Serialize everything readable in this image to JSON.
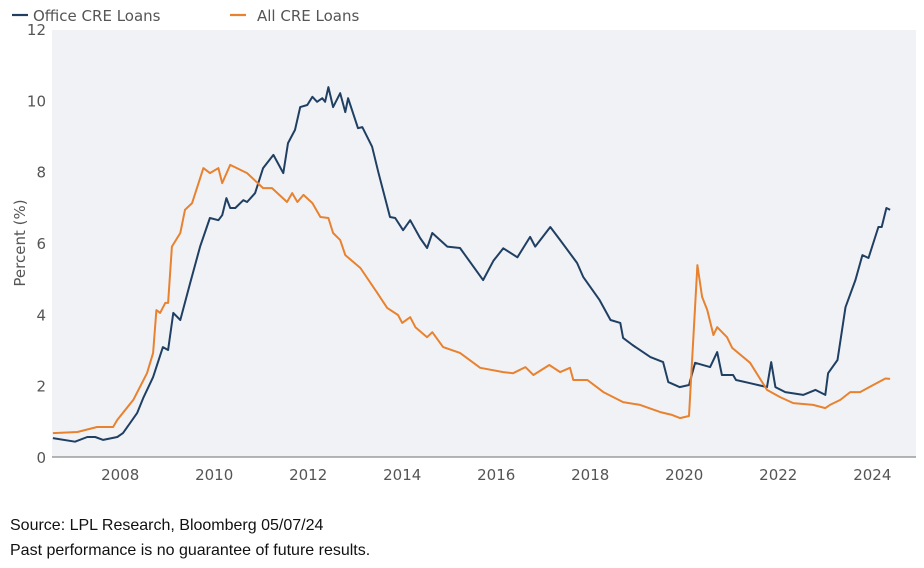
{
  "chart_data": {
    "type": "line",
    "title": "",
    "xlabel": "",
    "ylabel": "Percent (%)",
    "xlim": [
      2006.55,
      2024.93
    ],
    "ylim": [
      0,
      12
    ],
    "yticks": [
      0,
      2,
      4,
      6,
      8,
      10,
      12
    ],
    "xticks": [
      2008,
      2010,
      2012,
      2014,
      2016,
      2018,
      2020,
      2022,
      2024
    ],
    "grid": false,
    "legend": "top-left",
    "series": [
      {
        "name": "Office CRE Loans",
        "color": "#1f3f63",
        "x": [
          2006.57,
          2007.04,
          2007.3,
          2007.47,
          2007.64,
          2007.94,
          2008.06,
          2008.36,
          2008.49,
          2008.7,
          2008.91,
          2009.02,
          2009.13,
          2009.28,
          2009.49,
          2009.7,
          2009.91,
          2010.09,
          2010.17,
          2010.26,
          2010.34,
          2010.45,
          2010.62,
          2010.7,
          2010.87,
          2011.04,
          2011.26,
          2011.47,
          2011.57,
          2011.72,
          2011.83,
          2011.98,
          2012.09,
          2012.19,
          2012.3,
          2012.36,
          2012.43,
          2012.53,
          2012.68,
          2012.79,
          2012.85,
          2013.06,
          2013.15,
          2013.36,
          2013.49,
          2013.74,
          2013.85,
          2014.02,
          2014.17,
          2014.38,
          2014.53,
          2014.64,
          2014.96,
          2015.23,
          2015.72,
          2015.94,
          2016.15,
          2016.45,
          2016.72,
          2016.83,
          2017.15,
          2017.36,
          2017.72,
          2017.85,
          2018.2,
          2018.43,
          2018.64,
          2018.7,
          2018.9,
          2019.28,
          2019.55,
          2019.66,
          2019.9,
          2020.1,
          2020.23,
          2020.55,
          2020.7,
          2020.8,
          2021.04,
          2021.1,
          2021.4,
          2021.76,
          2021.85,
          2021.94,
          2022.15,
          2022.53,
          2022.79,
          2023.0,
          2023.06,
          2023.26,
          2023.43,
          2023.64,
          2023.79,
          2023.92,
          2024.13,
          2024.2,
          2024.3,
          2024.38
        ],
        "y": [
          0.53,
          0.43,
          0.56,
          0.56,
          0.48,
          0.56,
          0.67,
          1.23,
          1.65,
          2.24,
          3.08,
          3.0,
          4.04,
          3.84,
          4.88,
          5.9,
          6.7,
          6.64,
          6.78,
          7.26,
          6.98,
          6.98,
          7.2,
          7.15,
          7.4,
          8.1,
          8.47,
          7.96,
          8.8,
          9.17,
          9.81,
          9.87,
          10.1,
          9.96,
          10.06,
          9.96,
          10.37,
          9.81,
          10.2,
          9.67,
          10.06,
          9.22,
          9.25,
          8.7,
          8.0,
          6.73,
          6.7,
          6.36,
          6.64,
          6.14,
          5.86,
          6.28,
          5.9,
          5.86,
          4.96,
          5.5,
          5.85,
          5.6,
          6.17,
          5.9,
          6.45,
          6.08,
          5.44,
          5.05,
          4.4,
          3.84,
          3.76,
          3.34,
          3.14,
          2.8,
          2.66,
          2.1,
          1.96,
          2.02,
          2.64,
          2.52,
          2.94,
          2.3,
          2.3,
          2.16,
          2.07,
          1.96,
          2.66,
          1.96,
          1.82,
          1.74,
          1.88,
          1.74,
          2.35,
          2.72,
          4.2,
          4.96,
          5.66,
          5.58,
          6.45,
          6.45,
          6.98,
          6.93
        ]
      },
      {
        "name": "All CRE Loans",
        "color": "#e8822f",
        "x": [
          2006.57,
          2007.09,
          2007.51,
          2007.85,
          2007.94,
          2008.28,
          2008.57,
          2008.7,
          2008.77,
          2008.85,
          2008.96,
          2009.02,
          2009.1,
          2009.28,
          2009.38,
          2009.53,
          2009.77,
          2009.91,
          2010.09,
          2010.17,
          2010.34,
          2010.7,
          2011.04,
          2011.23,
          2011.55,
          2011.66,
          2011.77,
          2011.9,
          2012.09,
          2012.26,
          2012.43,
          2012.53,
          2012.68,
          2012.79,
          2013.11,
          2013.47,
          2013.68,
          2013.91,
          2014.0,
          2014.17,
          2014.28,
          2014.53,
          2014.64,
          2014.87,
          2015.23,
          2015.66,
          2016.15,
          2016.36,
          2016.62,
          2016.79,
          2017.13,
          2017.36,
          2017.57,
          2017.64,
          2017.94,
          2018.28,
          2018.7,
          2019.06,
          2019.49,
          2019.74,
          2019.91,
          2020.1,
          2020.28,
          2020.38,
          2020.49,
          2020.62,
          2020.7,
          2020.91,
          2021.02,
          2021.4,
          2021.76,
          2022.04,
          2022.32,
          2022.74,
          2023.0,
          2023.1,
          2023.32,
          2023.53,
          2023.74,
          2024.02,
          2024.28,
          2024.38
        ],
        "y": [
          0.67,
          0.7,
          0.84,
          0.84,
          1.04,
          1.6,
          2.35,
          2.92,
          4.12,
          4.04,
          4.32,
          4.32,
          5.9,
          6.28,
          6.93,
          7.12,
          8.1,
          7.96,
          8.1,
          7.68,
          8.19,
          7.96,
          7.54,
          7.54,
          7.15,
          7.4,
          7.15,
          7.35,
          7.12,
          6.73,
          6.7,
          6.28,
          6.08,
          5.66,
          5.3,
          4.6,
          4.18,
          3.98,
          3.76,
          3.92,
          3.64,
          3.36,
          3.5,
          3.08,
          2.92,
          2.5,
          2.38,
          2.35,
          2.52,
          2.3,
          2.58,
          2.38,
          2.5,
          2.16,
          2.16,
          1.82,
          1.54,
          1.46,
          1.26,
          1.18,
          1.09,
          1.15,
          5.38,
          4.49,
          4.12,
          3.42,
          3.64,
          3.36,
          3.06,
          2.64,
          1.88,
          1.68,
          1.51,
          1.46,
          1.37,
          1.46,
          1.6,
          1.82,
          1.82,
          2.02,
          2.2,
          2.19
        ]
      }
    ]
  },
  "footer": {
    "source": "Source: LPL Research, Bloomberg 05/07/24",
    "disclaimer": "Past performance is no guarantee of future results."
  }
}
